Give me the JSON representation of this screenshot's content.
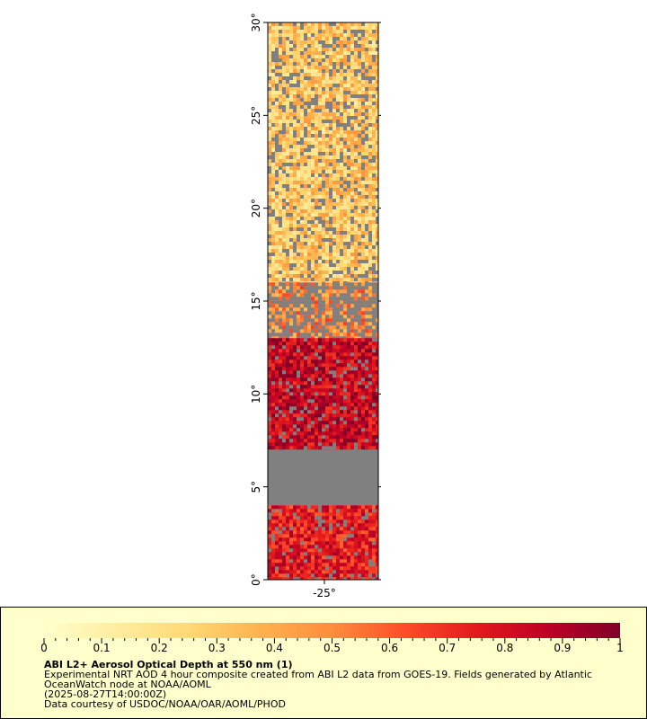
{
  "map": {
    "lat_ticks": [
      "0°",
      "5°",
      "10°",
      "15°",
      "20°",
      "25°",
      "30°"
    ],
    "lon_ticks": [
      "-25°"
    ],
    "lat_range": [
      0,
      30
    ],
    "missing_color": "#808080",
    "bands": [
      {
        "lat_from": 30,
        "lat_to": 16,
        "level": 0.3,
        "clouds": "scattered"
      },
      {
        "lat_from": 16,
        "lat_to": 13,
        "level": 0.5,
        "clouds": "heavy"
      },
      {
        "lat_from": 13,
        "lat_to": 7,
        "level": 0.85,
        "clouds": "light"
      },
      {
        "lat_from": 7,
        "lat_to": 4,
        "level": null,
        "clouds": "full"
      },
      {
        "lat_from": 4,
        "lat_to": 0,
        "level": 0.75,
        "clouds": "light"
      }
    ]
  },
  "colorbar": {
    "ticks": [
      "0",
      "0.1",
      "0.2",
      "0.3",
      "0.4",
      "0.5",
      "0.6",
      "0.7",
      "0.8",
      "0.9",
      "1"
    ],
    "min": 0,
    "max": 1,
    "colors": [
      "#ffffcc",
      "#ffeda0",
      "#fed976",
      "#feb24c",
      "#fd8d3c",
      "#fc4e2a",
      "#e31a1c",
      "#bd0026",
      "#800026"
    ]
  },
  "legend": {
    "title": "ABI L2+ Aerosol Optical Depth at 550 nm (1)",
    "description": "Experimental NRT AOD 4 hour composite created from ABI L2 data from GOES-19. Fields generated by Atlantic OceanWatch node at NOAA/AOML",
    "timestamp": "(2025-08-27T14:00:00Z)",
    "credit": "Data courtesy of USDOC/NOAA/OAR/AOML/PHOD"
  }
}
